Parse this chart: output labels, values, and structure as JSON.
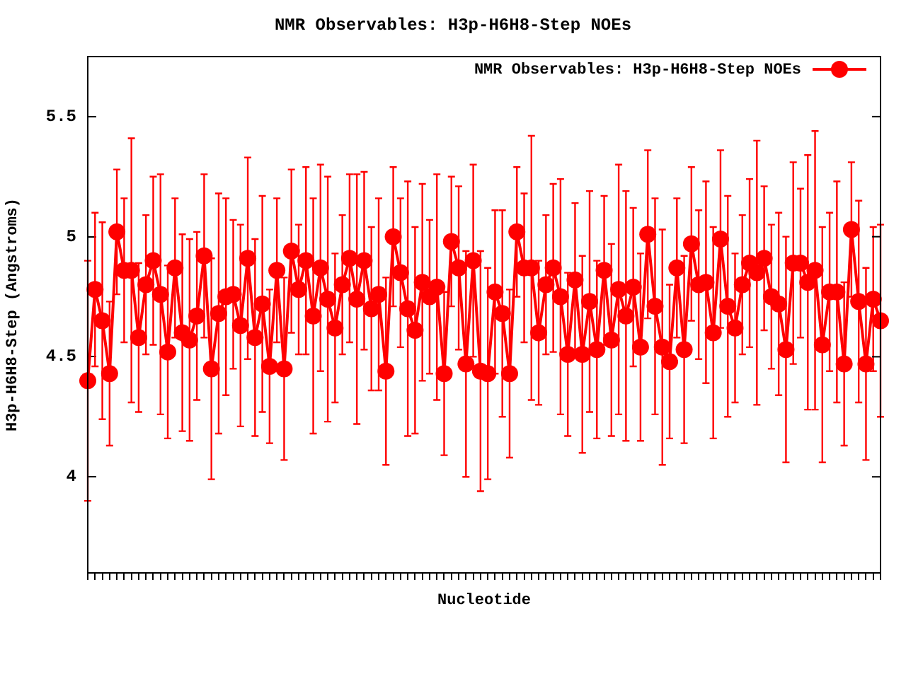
{
  "chart_data": {
    "type": "line",
    "title": "NMR Observables: H3p-H6H8-Step NOEs",
    "xlabel": "Nucleotide",
    "ylabel": "H3p-H6H8-Step (Angstroms)",
    "categories": [
      null,
      null,
      null,
      null,
      null,
      null,
      null,
      null,
      null,
      null,
      null,
      null,
      null,
      null,
      null,
      null,
      null,
      null,
      null,
      null,
      null,
      null,
      null,
      null,
      null,
      null,
      null,
      null,
      null,
      null,
      null,
      null,
      null,
      null,
      null,
      null,
      null,
      null,
      null,
      null,
      null,
      null,
      null,
      null,
      null,
      null,
      null,
      null,
      null,
      null,
      null,
      null,
      null,
      null,
      null,
      null,
      null,
      null,
      null,
      null,
      null,
      null,
      null,
      null,
      null,
      null,
      null,
      null,
      null,
      null,
      null,
      null,
      null,
      null,
      null,
      null,
      null,
      null,
      null,
      null,
      null,
      null,
      null,
      null,
      null,
      null,
      null,
      null,
      null,
      null,
      null,
      null,
      null,
      null,
      null,
      null,
      null,
      null,
      null,
      null,
      null,
      null,
      null,
      null,
      null,
      null,
      null,
      null,
      null,
      null
    ],
    "series": [
      {
        "name": "NMR Observables: H3p-H6H8-Step NOEs",
        "color": "#ff0000",
        "values": [
          4.4,
          4.78,
          4.65,
          4.43,
          5.02,
          4.86,
          4.86,
          4.58,
          4.8,
          4.9,
          4.76,
          4.52,
          4.87,
          4.6,
          4.57,
          4.67,
          4.92,
          4.45,
          4.68,
          4.75,
          4.76,
          4.63,
          4.91,
          4.58,
          4.72,
          4.46,
          4.86,
          4.45,
          4.94,
          4.78,
          4.9,
          4.67,
          4.87,
          4.74,
          4.62,
          4.8,
          4.91,
          4.74,
          4.9,
          4.7,
          4.76,
          4.44,
          5.0,
          4.85,
          4.7,
          4.61,
          4.81,
          4.75,
          4.79,
          4.43,
          4.98,
          4.87,
          4.47,
          4.9,
          4.44,
          4.43,
          4.77,
          4.68,
          4.43,
          5.02,
          4.87,
          4.87,
          4.6,
          4.8,
          4.87,
          4.75,
          4.51,
          4.82,
          4.51,
          4.73,
          4.53,
          4.86,
          4.57,
          4.78,
          4.67,
          4.79,
          4.54,
          5.01,
          4.71,
          4.54,
          4.48,
          4.87,
          4.53,
          4.97,
          4.8,
          4.81,
          4.6,
          4.99,
          4.71,
          4.62,
          4.8,
          4.89,
          4.85,
          4.91,
          4.75,
          4.72,
          4.53,
          4.89,
          4.89,
          4.81,
          4.86,
          4.55,
          4.77,
          4.77,
          4.47,
          5.03,
          4.73,
          4.47,
          4.74,
          4.65
        ],
        "errors": [
          0.5,
          0.32,
          0.41,
          0.3,
          0.26,
          0.3,
          0.55,
          0.31,
          0.29,
          0.35,
          0.5,
          0.36,
          0.29,
          0.41,
          0.42,
          0.35,
          0.34,
          0.46,
          0.5,
          0.41,
          0.31,
          0.42,
          0.42,
          0.41,
          0.45,
          0.32,
          0.3,
          0.38,
          0.34,
          0.27,
          0.39,
          0.49,
          0.43,
          0.51,
          0.31,
          0.29,
          0.35,
          0.52,
          0.37,
          0.34,
          0.4,
          0.39,
          0.29,
          0.31,
          0.53,
          0.43,
          0.41,
          0.32,
          0.47,
          0.34,
          0.27,
          0.34,
          0.47,
          0.4,
          0.5,
          0.44,
          0.34,
          0.43,
          0.35,
          0.27,
          0.31,
          0.55,
          0.3,
          0.29,
          0.35,
          0.49,
          0.34,
          0.32,
          0.41,
          0.46,
          0.37,
          0.31,
          0.4,
          0.52,
          0.52,
          0.33,
          0.39,
          0.35,
          0.45,
          0.49,
          0.32,
          0.29,
          0.39,
          0.32,
          0.31,
          0.42,
          0.44,
          0.37,
          0.46,
          0.31,
          0.29,
          0.35,
          0.55,
          0.3,
          0.3,
          0.38,
          0.47,
          0.42,
          0.31,
          0.53,
          0.58,
          0.49,
          0.33,
          0.46,
          0.34,
          0.28,
          0.42,
          0.4,
          0.3,
          0.4
        ]
      }
    ],
    "ylim": [
      3.6,
      5.75
    ],
    "yticks": [
      4,
      4.5,
      5,
      5.5
    ],
    "grid": false,
    "legend": "top right",
    "marker": "circle",
    "line_style": "solid",
    "tick_labels": "y"
  }
}
